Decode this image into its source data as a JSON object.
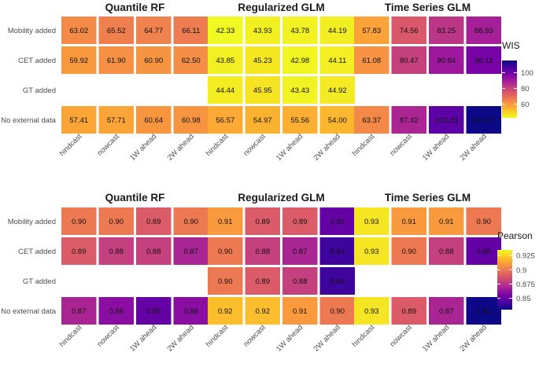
{
  "chart_data": [
    {
      "type": "heatmap",
      "metric": "WIS",
      "legend_title": "WIS",
      "legend_ticks": [
        60,
        80,
        100
      ],
      "color_range": [
        42.33,
        115.57
      ],
      "color_scale": "plasma-reversed",
      "row_labels": [
        "Mobility added",
        "CET added",
        "GT added",
        "No external data"
      ],
      "col_labels": [
        "hindcast",
        "nowcast",
        "1W ahead",
        "2W ahead"
      ],
      "panels": [
        {
          "title": "Quantile RF",
          "values": [
            [
              63.02,
              65.52,
              64.77,
              66.11
            ],
            [
              59.92,
              61.9,
              60.9,
              62.5
            ],
            [
              null,
              null,
              null,
              null
            ],
            [
              57.41,
              57.71,
              60.64,
              60.98
            ]
          ]
        },
        {
          "title": "Regularized GLM",
          "values": [
            [
              42.33,
              43.93,
              43.78,
              44.19
            ],
            [
              43.85,
              45.23,
              42.98,
              44.11
            ],
            [
              44.44,
              45.95,
              43.43,
              44.92
            ],
            [
              56.57,
              54.97,
              55.56,
              54.0
            ]
          ]
        },
        {
          "title": "Time Series GLM",
          "values": [
            [
              57.83,
              74.56,
              83.25,
              88.93
            ],
            [
              61.08,
              80.47,
              90.84,
              98.11
            ],
            [
              null,
              null,
              null,
              null
            ],
            [
              63.37,
              87.42,
              103.23,
              115.57
            ]
          ]
        }
      ]
    },
    {
      "type": "heatmap",
      "metric": "Pearson",
      "legend_title": "Pearson",
      "legend_ticks": [
        0.85,
        0.875,
        0.9,
        0.925
      ],
      "color_range": [
        0.83,
        0.935
      ],
      "color_scale": "plasma",
      "row_labels": [
        "Mobility added",
        "CET added",
        "GT added",
        "No external data"
      ],
      "col_labels": [
        "hindcast",
        "nowcast",
        "1W ahead",
        "2W ahead"
      ],
      "panels": [
        {
          "title": "Quantile RF",
          "values": [
            [
              0.9,
              0.9,
              0.89,
              0.9
            ],
            [
              0.89,
              0.88,
              0.88,
              0.87
            ],
            [
              null,
              null,
              null,
              null
            ],
            [
              0.87,
              0.86,
              0.85,
              0.86
            ]
          ]
        },
        {
          "title": "Regularized GLM",
          "values": [
            [
              0.91,
              0.89,
              0.89,
              0.85
            ],
            [
              0.9,
              0.88,
              0.87,
              0.84
            ],
            [
              0.9,
              0.89,
              0.88,
              0.84
            ],
            [
              0.92,
              0.92,
              0.91,
              0.9
            ]
          ]
        },
        {
          "title": "Time Series GLM",
          "values": [
            [
              0.93,
              0.91,
              0.91,
              0.9
            ],
            [
              0.93,
              0.9,
              0.88,
              0.85
            ],
            [
              null,
              null,
              null,
              null
            ],
            [
              0.93,
              0.89,
              0.87,
              0.83
            ]
          ]
        }
      ]
    }
  ]
}
